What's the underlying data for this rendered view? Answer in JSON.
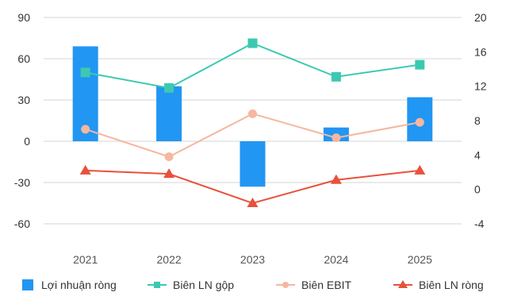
{
  "chart_data": {
    "type": "bar+line",
    "categories": [
      "2021",
      "2022",
      "2023",
      "2024",
      "2025"
    ],
    "y_left": {
      "min": -60,
      "max": 90,
      "ticks": [
        90,
        60,
        30,
        0,
        -30,
        -60
      ]
    },
    "y_right": {
      "min": -4,
      "max": 20,
      "ticks": [
        20,
        16,
        12,
        8,
        4,
        0,
        -4
      ]
    },
    "grid": true,
    "legend_position": "bottom",
    "series": [
      {
        "name": "Lợi nhuận ròng",
        "type": "bar",
        "axis": "left",
        "color": "#2196f3",
        "legend_marker": "square",
        "values": [
          69,
          40,
          -33,
          10,
          32
        ]
      },
      {
        "name": "Biên LN gộp",
        "type": "line",
        "axis": "right",
        "color": "#3cc9b0",
        "marker": "square",
        "legend_marker": "line-square",
        "values": [
          13.6,
          11.8,
          17.0,
          13.1,
          14.5
        ]
      },
      {
        "name": "Biên EBIT",
        "type": "line",
        "axis": "right",
        "color": "#f5b7a0",
        "marker": "circle",
        "legend_marker": "line-circle",
        "values": [
          7.0,
          3.8,
          8.8,
          6.0,
          7.8
        ]
      },
      {
        "name": "Biên LN ròng",
        "type": "line",
        "axis": "right",
        "color": "#e8513b",
        "marker": "triangle",
        "legend_marker": "line-triangle",
        "values": [
          2.2,
          1.8,
          -1.6,
          1.1,
          2.2
        ]
      }
    ]
  }
}
